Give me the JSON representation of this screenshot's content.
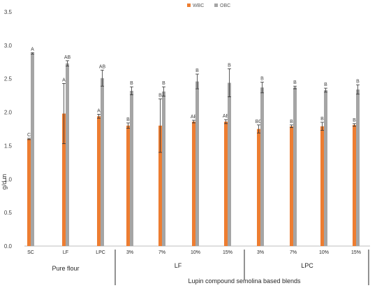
{
  "chart_data": {
    "type": "bar",
    "title": "",
    "xlabel": "",
    "ylabel": "g/d.m",
    "ylim": [
      0,
      3.5
    ],
    "yticks": [
      "0.0",
      "0.5",
      "1.0",
      "1.5",
      "2.0",
      "2.5",
      "3.0",
      "3.5"
    ],
    "grid": false,
    "legend_position": "top-center",
    "categories": [
      "SC",
      "LF",
      "LPC",
      "3%",
      "7%",
      "10%",
      "15%",
      "3%",
      "7%",
      "10%",
      "15%"
    ],
    "series": [
      {
        "name": "WBC",
        "color": "#ED7D31",
        "values": [
          1.6,
          1.98,
          1.94,
          1.8,
          1.8,
          1.86,
          1.86,
          1.75,
          1.79,
          1.79,
          1.81
        ],
        "errors": [
          0.01,
          0.45,
          0.03,
          0.04,
          0.4,
          0.02,
          0.03,
          0.06,
          0.02,
          0.06,
          0.02
        ],
        "labels": [
          "C",
          "A",
          "A",
          "B",
          "B",
          "AB",
          "AB",
          "BC",
          "B",
          "B",
          "B"
        ]
      },
      {
        "name": "OBC",
        "color": "#A5A5A5",
        "values": [
          2.88,
          2.73,
          2.51,
          2.32,
          2.31,
          2.46,
          2.44,
          2.37,
          2.37,
          2.33,
          2.34
        ],
        "errors": [
          0.01,
          0.04,
          0.12,
          0.06,
          0.07,
          0.11,
          0.21,
          0.08,
          0.02,
          0.03,
          0.07
        ],
        "labels": [
          "A",
          "AB",
          "AB",
          "B",
          "B",
          "B",
          "B",
          "B",
          "B",
          "B",
          "B"
        ]
      }
    ],
    "group_labels": [
      {
        "text": "Pure flour",
        "from": 0,
        "to": 2
      },
      {
        "text": "LF",
        "from": 3,
        "to": 6
      },
      {
        "text": "LPC",
        "from": 7,
        "to": 10
      }
    ],
    "bottom_label": "Lupin compound semolina based blends"
  }
}
